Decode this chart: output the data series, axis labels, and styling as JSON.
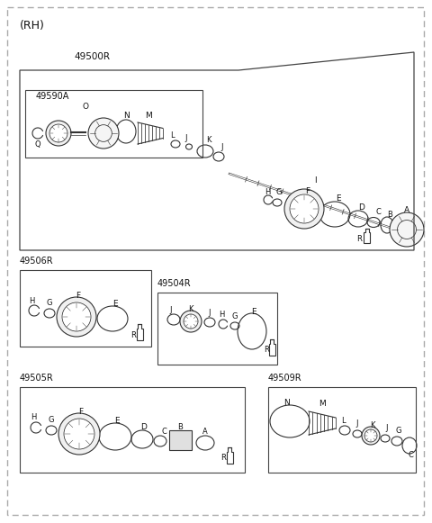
{
  "bg_color": "#ffffff",
  "lc": "#333333",
  "lw": 0.8,
  "figsize": [
    4.8,
    5.81
  ],
  "dpi": 100,
  "labels": {
    "title": "(RH)",
    "main": "49500R",
    "s1": "49590A",
    "s2": "49506R",
    "s3": "49504R",
    "s4": "49505R",
    "s5": "49509R"
  }
}
